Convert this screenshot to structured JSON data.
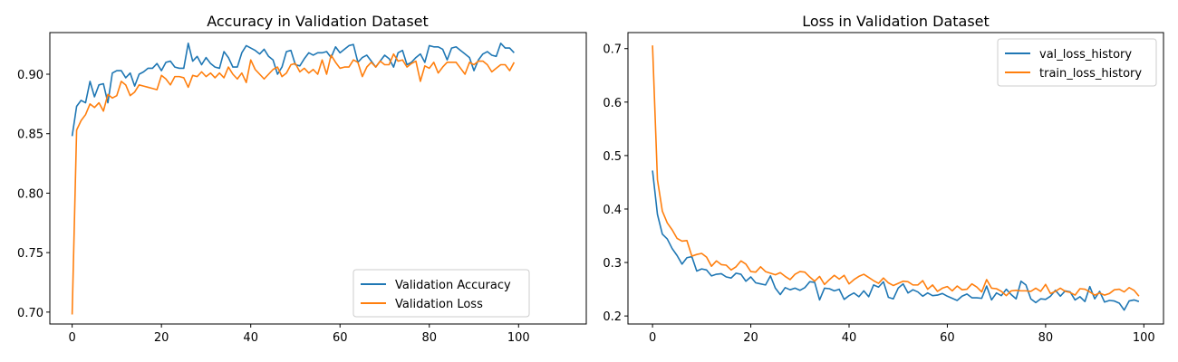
{
  "chart_data": [
    {
      "type": "line",
      "title": "Accuracy in Validation Dataset",
      "xlabel": "",
      "ylabel": "",
      "xlim": [
        -5,
        104
      ],
      "ylim": [
        0.69,
        0.935
      ],
      "xticks": [
        0,
        20,
        40,
        60,
        80,
        100
      ],
      "yticks": [
        0.7,
        0.75,
        0.8,
        0.85,
        0.9
      ],
      "ytick_decimals": 2,
      "legend": "lower-right",
      "grid": false,
      "series": [
        {
          "name": "Validation Accuracy",
          "color": "#1f77b4",
          "values": [
            0.848,
            0.873,
            0.878,
            0.876,
            0.894,
            0.881,
            0.891,
            0.892,
            0.876,
            0.901,
            0.903,
            0.903,
            0.897,
            0.901,
            0.89,
            0.9,
            0.902,
            0.905,
            0.905,
            0.909,
            0.903,
            0.91,
            0.911,
            0.906,
            0.905,
            0.905,
            0.926,
            0.911,
            0.915,
            0.908,
            0.914,
            0.909,
            0.906,
            0.905,
            0.919,
            0.914,
            0.906,
            0.906,
            0.918,
            0.924,
            0.922,
            0.92,
            0.917,
            0.921,
            0.915,
            0.912,
            0.9,
            0.906,
            0.919,
            0.92,
            0.908,
            0.907,
            0.913,
            0.918,
            0.916,
            0.918,
            0.918,
            0.919,
            0.914,
            0.923,
            0.918,
            0.921,
            0.924,
            0.925,
            0.91,
            0.914,
            0.916,
            0.911,
            0.906,
            0.911,
            0.916,
            0.913,
            0.906,
            0.918,
            0.92,
            0.908,
            0.91,
            0.914,
            0.917,
            0.91,
            0.924,
            0.923,
            0.923,
            0.921,
            0.912,
            0.922,
            0.923,
            0.92,
            0.917,
            0.914,
            0.903,
            0.912,
            0.917,
            0.919,
            0.916,
            0.915,
            0.926,
            0.922,
            0.922,
            0.918
          ]
        },
        {
          "name": "Validation Loss",
          "color": "#ff7f0e",
          "values": [
            0.698,
            0.853,
            0.861,
            0.866,
            0.875,
            0.872,
            0.876,
            0.869,
            0.883,
            0.88,
            0.882,
            0.894,
            0.891,
            0.882,
            0.885,
            0.891,
            0.89,
            0.889,
            0.888,
            0.887,
            0.899,
            0.896,
            0.891,
            0.898,
            0.898,
            0.897,
            0.889,
            0.899,
            0.898,
            0.902,
            0.898,
            0.901,
            0.897,
            0.901,
            0.897,
            0.906,
            0.9,
            0.896,
            0.901,
            0.893,
            0.912,
            0.904,
            0.9,
            0.896,
            0.9,
            0.904,
            0.906,
            0.898,
            0.901,
            0.908,
            0.909,
            0.902,
            0.905,
            0.901,
            0.904,
            0.9,
            0.912,
            0.9,
            0.916,
            0.91,
            0.905,
            0.906,
            0.906,
            0.912,
            0.91,
            0.898,
            0.906,
            0.91,
            0.906,
            0.911,
            0.908,
            0.908,
            0.917,
            0.911,
            0.912,
            0.906,
            0.909,
            0.911,
            0.894,
            0.907,
            0.905,
            0.91,
            0.901,
            0.906,
            0.91,
            0.91,
            0.91,
            0.905,
            0.9,
            0.91,
            0.908,
            0.911,
            0.911,
            0.908,
            0.902,
            0.905,
            0.908,
            0.908,
            0.903,
            0.91
          ]
        }
      ]
    },
    {
      "type": "line",
      "title": "Loss in Validation Dataset",
      "xlabel": "",
      "ylabel": "",
      "xlim": [
        -5,
        104
      ],
      "ylim": [
        0.185,
        0.73
      ],
      "xticks": [
        0,
        20,
        40,
        60,
        80,
        100
      ],
      "yticks": [
        0.2,
        0.3,
        0.4,
        0.5,
        0.6,
        0.7
      ],
      "ytick_decimals": 1,
      "legend": "upper-right",
      "grid": false,
      "series": [
        {
          "name": "val_loss_history",
          "color": "#1f77b4",
          "values": [
            0.472,
            0.39,
            0.353,
            0.344,
            0.326,
            0.313,
            0.297,
            0.309,
            0.311,
            0.284,
            0.288,
            0.286,
            0.275,
            0.278,
            0.279,
            0.273,
            0.271,
            0.28,
            0.278,
            0.265,
            0.273,
            0.262,
            0.26,
            0.258,
            0.275,
            0.252,
            0.24,
            0.253,
            0.249,
            0.252,
            0.248,
            0.253,
            0.264,
            0.263,
            0.23,
            0.252,
            0.251,
            0.247,
            0.25,
            0.231,
            0.238,
            0.243,
            0.236,
            0.247,
            0.236,
            0.258,
            0.254,
            0.264,
            0.235,
            0.232,
            0.252,
            0.26,
            0.243,
            0.249,
            0.245,
            0.237,
            0.243,
            0.238,
            0.239,
            0.242,
            0.237,
            0.233,
            0.229,
            0.237,
            0.241,
            0.234,
            0.234,
            0.233,
            0.256,
            0.23,
            0.243,
            0.238,
            0.25,
            0.24,
            0.232,
            0.265,
            0.258,
            0.232,
            0.225,
            0.232,
            0.231,
            0.237,
            0.248,
            0.237,
            0.247,
            0.245,
            0.23,
            0.236,
            0.227,
            0.255,
            0.232,
            0.246,
            0.226,
            0.229,
            0.228,
            0.224,
            0.211,
            0.228,
            0.23,
            0.227
          ]
        },
        {
          "name": "train_loss_history",
          "color": "#ff7f0e",
          "values": [
            0.706,
            0.455,
            0.396,
            0.374,
            0.361,
            0.345,
            0.34,
            0.341,
            0.312,
            0.315,
            0.317,
            0.31,
            0.293,
            0.303,
            0.296,
            0.295,
            0.286,
            0.292,
            0.303,
            0.297,
            0.283,
            0.282,
            0.292,
            0.283,
            0.28,
            0.277,
            0.281,
            0.274,
            0.268,
            0.278,
            0.283,
            0.282,
            0.273,
            0.265,
            0.274,
            0.259,
            0.268,
            0.276,
            0.269,
            0.276,
            0.26,
            0.268,
            0.274,
            0.278,
            0.272,
            0.266,
            0.261,
            0.271,
            0.262,
            0.257,
            0.261,
            0.265,
            0.264,
            0.258,
            0.258,
            0.266,
            0.25,
            0.258,
            0.246,
            0.252,
            0.255,
            0.247,
            0.256,
            0.249,
            0.25,
            0.26,
            0.254,
            0.245,
            0.268,
            0.252,
            0.251,
            0.246,
            0.238,
            0.247,
            0.248,
            0.247,
            0.247,
            0.246,
            0.252,
            0.246,
            0.259,
            0.242,
            0.246,
            0.252,
            0.246,
            0.244,
            0.239,
            0.251,
            0.25,
            0.245,
            0.239,
            0.243,
            0.239,
            0.242,
            0.249,
            0.25,
            0.245,
            0.253,
            0.248,
            0.237
          ]
        }
      ]
    }
  ]
}
